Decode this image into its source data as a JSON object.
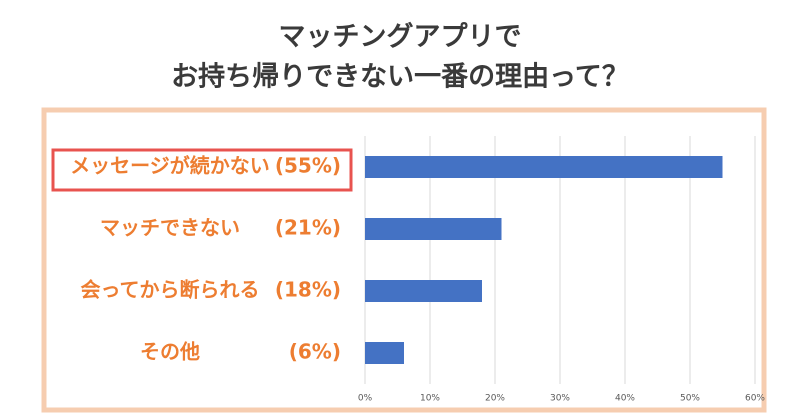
{
  "chart_data": {
    "type": "barh",
    "title_lines": [
      "マッチングアプリで",
      "お持ち帰りできない一番の理由って？"
    ],
    "categories": [
      "メッセージが続かない",
      "マッチできない",
      "会ってから断られる",
      "その他"
    ],
    "values": [
      55,
      21,
      18,
      6
    ],
    "value_labels": [
      "(55%)",
      "(21%)",
      "(18%)",
      "(6%)"
    ],
    "color": "#4472c4",
    "xlim": [
      0,
      60
    ],
    "xticks": [
      {
        "value": 0,
        "label": "0%"
      },
      {
        "value": 10,
        "label": "10%"
      },
      {
        "value": 20,
        "label": "20%"
      },
      {
        "value": 30,
        "label": "30%"
      },
      {
        "value": 40,
        "label": "40%"
      },
      {
        "value": 50,
        "label": "50%"
      },
      {
        "value": 60,
        "label": "60%"
      }
    ],
    "grid": true
  }
}
